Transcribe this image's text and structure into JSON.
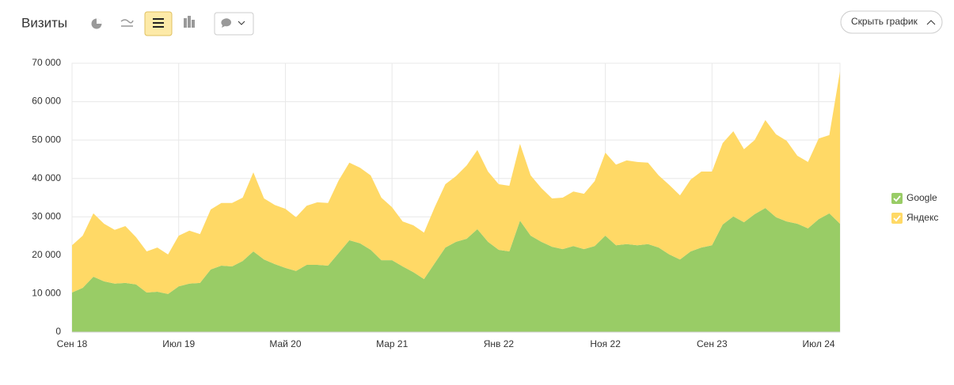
{
  "chart_data": {
    "type": "area",
    "stacked": true,
    "title": "Визиты",
    "categories": [
      "Сен 18",
      null,
      null,
      null,
      null,
      null,
      null,
      null,
      null,
      null,
      "Июл 19",
      null,
      null,
      null,
      null,
      null,
      null,
      null,
      null,
      null,
      "Май 20",
      null,
      null,
      null,
      null,
      null,
      null,
      null,
      null,
      null,
      "Мар 21",
      null,
      null,
      null,
      null,
      null,
      null,
      null,
      null,
      null,
      "Янв 22",
      null,
      null,
      null,
      null,
      null,
      null,
      null,
      null,
      null,
      "Ноя 22",
      null,
      null,
      null,
      null,
      null,
      null,
      null,
      null,
      null,
      "Сен 23",
      null,
      null,
      null,
      null,
      null,
      null,
      null,
      null,
      null,
      "Июл 24",
      null,
      null
    ],
    "series": [
      {
        "name": "Google",
        "color": "#99cc66",
        "values": [
          10300,
          11500,
          14400,
          13200,
          12600,
          12800,
          12400,
          10300,
          10500,
          9900,
          11900,
          12600,
          12800,
          16300,
          17300,
          17100,
          18500,
          21000,
          18900,
          17700,
          16700,
          15900,
          17500,
          17500,
          17300,
          20600,
          23900,
          23100,
          21400,
          18700,
          18700,
          17100,
          15600,
          13800,
          17900,
          22000,
          23500,
          24300,
          26800,
          23500,
          21400,
          21000,
          29000,
          25100,
          23500,
          22200,
          21600,
          22400,
          21600,
          22400,
          25100,
          22600,
          22900,
          22600,
          22900,
          22000,
          20200,
          18900,
          21000,
          22000,
          22600,
          28000,
          30100,
          28600,
          30700,
          32300,
          29900,
          28800,
          28200,
          27000,
          29400,
          30900,
          28200
        ]
      },
      {
        "name": "Яндекс",
        "color": "#ffd966",
        "values": [
          12300,
          13600,
          16500,
          15000,
          14000,
          14800,
          12300,
          10700,
          11500,
          10300,
          13200,
          13800,
          12700,
          15600,
          16300,
          16500,
          16500,
          20600,
          15900,
          15400,
          15400,
          14000,
          15400,
          16300,
          16300,
          18900,
          20200,
          19700,
          19400,
          16300,
          13800,
          11700,
          12200,
          12100,
          14600,
          16500,
          17100,
          19100,
          20600,
          18300,
          17100,
          17100,
          20000,
          15700,
          14000,
          12600,
          13400,
          14200,
          14400,
          16900,
          21600,
          21000,
          21800,
          21700,
          21200,
          18800,
          18100,
          16700,
          18700,
          19800,
          19200,
          21200,
          22200,
          19000,
          19300,
          22900,
          21600,
          21000,
          17700,
          17300,
          21000,
          20400,
          39700
        ]
      }
    ],
    "ylim": [
      0,
      70000
    ],
    "yticks": [
      0,
      {
        "value": 10000,
        "label": "10 000"
      },
      {
        "value": 20000,
        "label": "20 000"
      },
      {
        "value": 30000,
        "label": "30 000"
      },
      {
        "value": 40000,
        "label": "40 000"
      },
      {
        "value": 50000,
        "label": "50 000"
      },
      {
        "value": 60000,
        "label": "60 000"
      },
      {
        "value": 70000,
        "label": "70 000"
      }
    ],
    "grid": true,
    "legend": "right"
  },
  "ui": {
    "hide_button": "Скрыть график"
  }
}
